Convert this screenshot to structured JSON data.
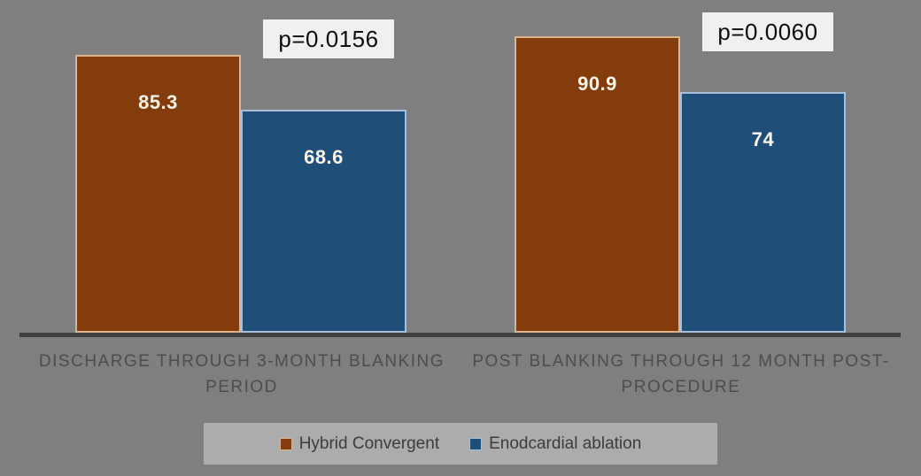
{
  "chart_data": {
    "type": "bar",
    "title": "",
    "categories": [
      "DISCHARGE THROUGH 3-MONTH BLANKING PERIOD",
      "POST BLANKING THROUGH 12 MONTH POST-PROCEDURE"
    ],
    "series": [
      {
        "name": "Hybrid Convergent",
        "values": [
          85.3,
          90.9
        ],
        "labels": [
          "85.3",
          "90.9"
        ],
        "color": "#843C0C",
        "border_color": "#DDB28C"
      },
      {
        "name": "Enodcardial ablation",
        "values": [
          68.6,
          74
        ],
        "labels": [
          "68.6",
          "74"
        ],
        "color": "#1F4E79",
        "border_color": "#A9BFD9"
      }
    ],
    "annotations": [
      {
        "text": "p=0.0156",
        "category_index": 0
      },
      {
        "text": "p=0.0060",
        "category_index": 1
      }
    ],
    "ylim": [
      0,
      100
    ],
    "grid": false,
    "legend_position": "bottom",
    "value_label_color": "#FBF4EA"
  },
  "colors": {
    "background": "#7F7F7F",
    "axis_line": "#3F3F3F",
    "category_text": "#4D4D4D",
    "p_value_box_bg": "#F0F0F0",
    "p_value_text": "#0D0D0D",
    "legend_bg": "#ACACAC",
    "legend_text": "#3C3C3C"
  }
}
